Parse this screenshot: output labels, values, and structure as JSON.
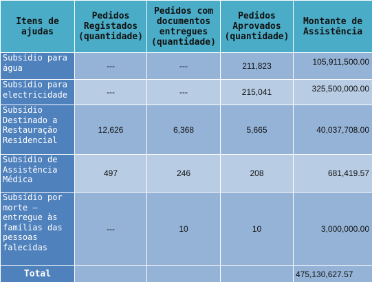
{
  "headers": {
    "items": "Itens de ajudas",
    "registered": "Pedidos Registados (quantidade)",
    "documents": "Pedidos com documentos entregues (quantidade)",
    "approved": "Pedidos Aprovados (quantidade)",
    "amount": "Montante de Assistência"
  },
  "rows": [
    {
      "label": "Subsídio para água",
      "registered": "---",
      "documents": "---",
      "approved": "211,823",
      "amount": "105,911,500.00"
    },
    {
      "label": "Subsídio para electricidade",
      "registered": "---",
      "documents": "---",
      "approved": "215,041",
      "amount": "325,500,000.00"
    },
    {
      "label": "Subsídio Destinado a Restauração Residencial",
      "registered": "12,626",
      "documents": "6,368",
      "approved": "5,665",
      "amount": "40,037,708.00"
    },
    {
      "label": "Subsídio de Assistência Médica",
      "registered": "497",
      "documents": "246",
      "approved": "208",
      "amount": "681,419.57"
    },
    {
      "label": "Subsídio por morte – entregue às famílias das pessoas falecidas",
      "registered": "---",
      "documents": "10",
      "approved": "10",
      "amount": "3,000,000.00"
    }
  ],
  "total": {
    "label": "Total",
    "amount": "475,130,627.57"
  }
}
